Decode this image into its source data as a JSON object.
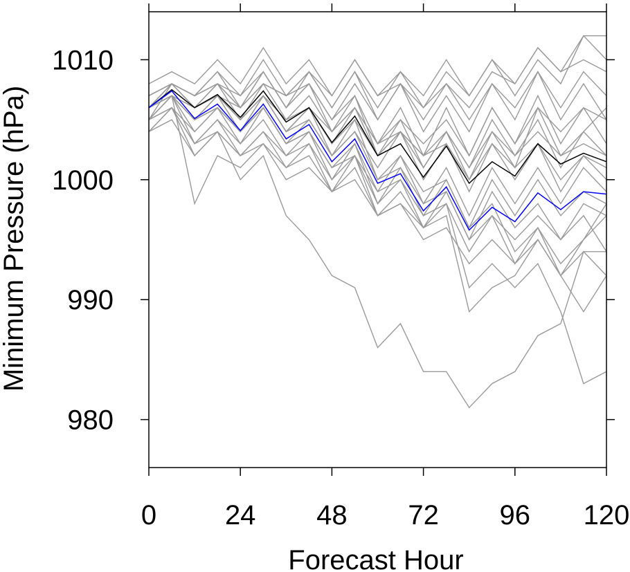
{
  "chart_data": {
    "type": "line",
    "title": "",
    "xlabel": "Forecast Hour",
    "ylabel": "Minimum Pressure (hPa)",
    "xlim": [
      0,
      120
    ],
    "ylim": [
      976,
      1014
    ],
    "x_ticks": [
      0,
      24,
      48,
      72,
      96,
      120
    ],
    "x_tick_labels": [
      "0",
      "24",
      "48",
      "72",
      "96",
      "120"
    ],
    "y_ticks": [
      980,
      990,
      1000,
      1010
    ],
    "y_tick_labels": [
      "980",
      "990",
      "1000",
      "1010"
    ],
    "grid": false,
    "legend": "none",
    "x": [
      0,
      6,
      12,
      18,
      24,
      30,
      36,
      42,
      48,
      54,
      60,
      66,
      72,
      78,
      84,
      90,
      96,
      102,
      108,
      114,
      120
    ],
    "colors": {
      "member": "#999999",
      "mean": "#000000",
      "highlight": "#0000ff",
      "axis": "#000000"
    },
    "series": [
      {
        "role": "member",
        "values": [
          1006,
          1008,
          1006,
          1008,
          1006,
          1009,
          1006,
          1008,
          1005,
          1008,
          1005,
          1008,
          1005,
          1008,
          1005,
          1008,
          1006,
          1009,
          1006,
          1009,
          1007
        ]
      },
      {
        "role": "member",
        "values": [
          1007,
          1008,
          1007,
          1009,
          1007,
          1010,
          1007,
          1009,
          1006,
          1009,
          1006,
          1009,
          1006,
          1009,
          1007,
          1010,
          1007,
          1010,
          1008,
          1012,
          1012
        ]
      },
      {
        "role": "member",
        "values": [
          1008,
          1009,
          1008,
          1010,
          1008,
          1011,
          1008,
          1010,
          1007,
          1010,
          1007,
          1009,
          1007,
          1010,
          1007,
          1010,
          1008,
          1011,
          1009,
          1012,
          1010
        ]
      },
      {
        "role": "member",
        "values": [
          1005,
          1008,
          1006,
          1007,
          1006,
          1008,
          1007,
          1009,
          1006,
          1009,
          1005,
          1008,
          1004,
          1007,
          1004,
          1008,
          1005,
          1009,
          1005,
          1008,
          1005
        ]
      },
      {
        "role": "member",
        "values": [
          1006,
          1007,
          1006,
          1008,
          1005,
          1008,
          1005,
          1007,
          1004,
          1007,
          1003,
          1006,
          1002,
          1006,
          1002,
          1006,
          1003,
          1007,
          1003,
          1006,
          1003
        ]
      },
      {
        "role": "member",
        "values": [
          1006,
          1007,
          1005,
          1007,
          1005,
          1007,
          1004,
          1006,
          1003,
          1005,
          1002,
          1005,
          1001,
          1004,
          1001,
          1005,
          1002,
          1005,
          1001,
          1004,
          1002
        ]
      },
      {
        "role": "member",
        "values": [
          1005,
          1007,
          1004,
          1006,
          1004,
          1006,
          1003,
          1005,
          1002,
          1004,
          1001,
          1004,
          1000,
          1003,
          999,
          1003,
          1000,
          1003,
          999,
          1002,
          1001
        ]
      },
      {
        "role": "member",
        "values": [
          1005,
          1006,
          1004,
          1006,
          1003,
          1006,
          1003,
          1004,
          1001,
          1003,
          999,
          1002,
          998,
          1001,
          997,
          1001,
          998,
          1001,
          998,
          1001,
          999
        ]
      },
      {
        "role": "member",
        "values": [
          1005,
          1006,
          1003,
          1005,
          1003,
          1005,
          1002,
          1004,
          1000,
          1003,
          998,
          1001,
          997,
          1000,
          996,
          1000,
          997,
          1000,
          997,
          999,
          998
        ]
      },
      {
        "role": "member",
        "values": [
          1004,
          1006,
          1003,
          1005,
          1002,
          1004,
          1002,
          1003,
          1000,
          1002,
          998,
          1000,
          996,
          999,
          995,
          999,
          996,
          998,
          995,
          998,
          997
        ]
      },
      {
        "role": "member",
        "values": [
          1004,
          1005,
          1002,
          1004,
          1002,
          1004,
          1001,
          1003,
          999,
          1002,
          997,
          999,
          996,
          998,
          994,
          997,
          995,
          997,
          995,
          997,
          994
        ]
      },
      {
        "role": "member",
        "values": [
          1006,
          1007,
          998,
          1002,
          1001,
          1003,
          1001,
          1002,
          999,
          1001,
          997,
          998,
          995,
          996,
          993,
          995,
          993,
          995,
          992,
          994,
          992
        ]
      },
      {
        "role": "member",
        "values": [
          1004,
          1006,
          1002,
          1004,
          1000,
          1002,
          997,
          995,
          992,
          991,
          986,
          988,
          984,
          984,
          981,
          983,
          984,
          987,
          988,
          994,
          994
        ]
      },
      {
        "role": "member",
        "values": [
          1005,
          1007,
          1003,
          1004,
          1002,
          1003,
          1000,
          1001,
          999,
          1000,
          997,
          998,
          996,
          997,
          989,
          991,
          992,
          995,
          992,
          989,
          992
        ]
      },
      {
        "role": "member",
        "values": [
          1006,
          1007,
          1005,
          1006,
          1004,
          1006,
          1003,
          1004,
          1001,
          1002,
          999,
          1000,
          997,
          998,
          991,
          993,
          991,
          993,
          989,
          983,
          984
        ]
      },
      {
        "role": "member",
        "values": [
          1007,
          1008,
          1006,
          1007,
          1005,
          1007,
          1004,
          1006,
          1002,
          1005,
          1000,
          1002,
          999,
          1000,
          996,
          998,
          994,
          996,
          992,
          995,
          998
        ]
      },
      {
        "role": "member",
        "values": [
          1006,
          1007,
          1005,
          1007,
          1004,
          1007,
          1004,
          1005,
          1002,
          1004,
          1000,
          1001,
          998,
          999,
          995,
          997,
          993,
          996,
          993,
          995,
          997
        ]
      },
      {
        "role": "member",
        "values": [
          1006,
          1008,
          1007,
          1008,
          1006,
          1009,
          1006,
          1008,
          1005,
          1007,
          1002,
          1004,
          1001,
          1004,
          1000,
          1004,
          1001,
          1006,
          1004,
          1006,
          1005
        ]
      },
      {
        "role": "member",
        "values": [
          1006,
          1008,
          1007,
          1009,
          1006,
          1008,
          1007,
          1008,
          1004,
          1006,
          1003,
          1005,
          1003,
          1005,
          1002,
          1006,
          1003,
          1006,
          1002,
          1004,
          1006
        ]
      },
      {
        "role": "member",
        "values": [
          1007,
          1008,
          1007,
          1008,
          1007,
          1009,
          1006,
          1009,
          1007,
          1010,
          1007,
          1008,
          1006,
          1008,
          1006,
          1009,
          1008,
          1011,
          1009,
          1010,
          1009
        ]
      },
      {
        "role": "member",
        "values": [
          1005,
          1007,
          1005,
          1006,
          1004,
          1007,
          1004,
          1006,
          1003,
          1006,
          1002,
          1004,
          1002,
          1003,
          1000,
          1003,
          1001,
          1003,
          1000,
          1002,
          1000
        ]
      },
      {
        "role": "member",
        "values": [
          1006,
          1007,
          1006,
          1007,
          1005,
          1007,
          1005,
          1006,
          1004,
          1006,
          1003,
          1004,
          1002,
          1004,
          1001,
          1004,
          1002,
          1004,
          1002,
          1003,
          1002
        ]
      },
      {
        "role": "mean",
        "values": [
          1006,
          1007.5,
          1006,
          1007.1,
          1005.2,
          1007.4,
          1004.8,
          1006,
          1003.1,
          1005.3,
          1002,
          1003,
          1000.2,
          1002.8,
          999.7,
          1001.5,
          1000.3,
          1003,
          1001.3,
          1002.2,
          1001.5
        ]
      },
      {
        "role": "highlight",
        "values": [
          1006,
          1007.4,
          1005.1,
          1006.3,
          1004.1,
          1006.3,
          1003.4,
          1004.6,
          1001.5,
          1003.4,
          999.7,
          1000.5,
          997.4,
          999.4,
          995.8,
          997.7,
          996.5,
          998.9,
          997.5,
          999,
          998.8
        ]
      }
    ]
  }
}
